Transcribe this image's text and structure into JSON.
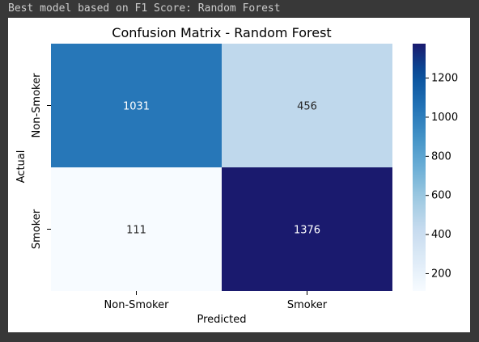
{
  "output_text": "Best model based on F1 Score: Random Forest",
  "colors": {
    "cmap": [
      "#f7fbff",
      "#deebf7",
      "#c6dbef",
      "#9ecae1",
      "#6baed6",
      "#4292c6",
      "#2171b5",
      "#08519c",
      "#08306b"
    ],
    "cmap_dark_end": "#1a1a6e"
  },
  "chart_data": {
    "type": "heatmap",
    "title": "Confusion Matrix - Random Forest",
    "xlabel": "Predicted",
    "ylabel": "Actual",
    "x_categories": [
      "Non-Smoker",
      "Smoker"
    ],
    "y_categories": [
      "Non-Smoker",
      "Smoker"
    ],
    "values": [
      [
        1031,
        456
      ],
      [
        111,
        1376
      ]
    ],
    "colorbar": {
      "min": 111,
      "max": 1376,
      "ticks": [
        200,
        400,
        600,
        800,
        1000,
        1200
      ]
    }
  }
}
